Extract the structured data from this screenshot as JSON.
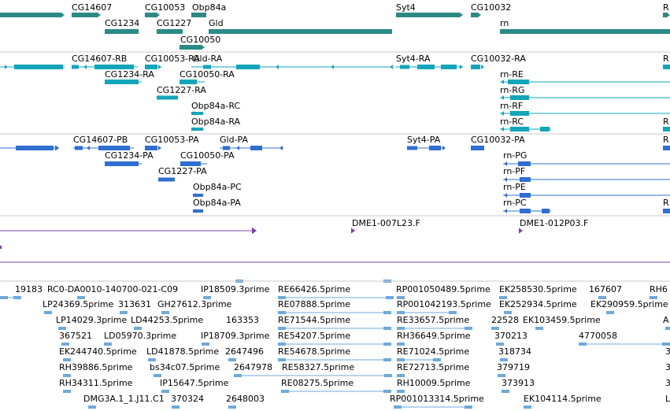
{
  "colors": {
    "gene": "#2b8a86",
    "transcript": "#12a5b9",
    "protein": "#2f6fd1",
    "clone": "#7a40a8",
    "est": "#6fa8dc",
    "separator": "#c8c8c8"
  },
  "tracks": {
    "genes": [
      {
        "label": "CG14607"
      },
      {
        "label": "CG10053"
      },
      {
        "label": "Obp84a"
      },
      {
        "label": "Syt4"
      },
      {
        "label": "CG10032"
      },
      {
        "label": "R"
      },
      {
        "label": "CG1234"
      },
      {
        "label": "CG1227"
      },
      {
        "label": "Gld"
      },
      {
        "label": "rn"
      },
      {
        "label": "CG10050"
      }
    ],
    "transcripts": [
      {
        "label": "CG14607-RB"
      },
      {
        "label": "CG10053-RA"
      },
      {
        "label": "Gld-RA"
      },
      {
        "label": "Syt4-RA"
      },
      {
        "label": "CG10032-RA"
      },
      {
        "label": "R"
      },
      {
        "label": "CG1234-RA"
      },
      {
        "label": "CG10050-RA"
      },
      {
        "label": "rn-RE"
      },
      {
        "label": "CG1227-RA"
      },
      {
        "label": "rn-RG"
      },
      {
        "label": "Obp84a-RC"
      },
      {
        "label": "rn-RF"
      },
      {
        "label": "Obp84a-RA"
      },
      {
        "label": "rn-RC"
      },
      {
        "label": "R"
      }
    ],
    "proteins": [
      {
        "label": "CG14607-PB"
      },
      {
        "label": "CG10053-PA"
      },
      {
        "label": "Gld-PA"
      },
      {
        "label": "Syt4-PA"
      },
      {
        "label": "CG10032-PA"
      },
      {
        "label": "R"
      },
      {
        "label": "CG1234-PA"
      },
      {
        "label": "CG10050-PA"
      },
      {
        "label": "rn-PG"
      },
      {
        "label": "CG1227-PA"
      },
      {
        "label": "rn-PF"
      },
      {
        "label": "Obp84a-PC"
      },
      {
        "label": "rn-PE"
      },
      {
        "label": "Obp84a-PA"
      },
      {
        "label": "rn-PC"
      },
      {
        "label": "R"
      }
    ],
    "clones": [
      {
        "label": "DME1-007L23.F"
      },
      {
        "label": "DME1-012P03.F"
      }
    ],
    "ests": [
      {
        "label": "19183"
      },
      {
        "label": "RC0-DA0010-140700-021-C09"
      },
      {
        "label": "IP18509.3prime"
      },
      {
        "label": "RE66426.5prime"
      },
      {
        "label": "RP001050489.5prime"
      },
      {
        "label": "EK258530.5prime"
      },
      {
        "label": "167607"
      },
      {
        "label": "RH6"
      },
      {
        "label": "LP24369.5prime"
      },
      {
        "label": "313631"
      },
      {
        "label": "GH27612.3prime"
      },
      {
        "label": "RE07888.5prime"
      },
      {
        "label": "RP001042193.5prime"
      },
      {
        "label": "EK252934.5prime"
      },
      {
        "label": "EK290959.5prime"
      },
      {
        "label": "LP14029.3prime"
      },
      {
        "label": "LD44253.5prime"
      },
      {
        "label": "163353"
      },
      {
        "label": "RE71544.5prime"
      },
      {
        "label": "RE33657.5prime"
      },
      {
        "label": "22528"
      },
      {
        "label": "EK103459.5prime"
      },
      {
        "label": "A"
      },
      {
        "label": "367521"
      },
      {
        "label": "LD05970.3prime"
      },
      {
        "label": "IP18709.3prime"
      },
      {
        "label": "RE54207.5prime"
      },
      {
        "label": "RH36649.5prime"
      },
      {
        "label": "370213"
      },
      {
        "label": "4770058"
      },
      {
        "label": "EK244740.5prime"
      },
      {
        "label": "LD41878.5prime"
      },
      {
        "label": "2647496"
      },
      {
        "label": "RE54678.5prime"
      },
      {
        "label": "RE71024.5prime"
      },
      {
        "label": "318734"
      },
      {
        "label": "3"
      },
      {
        "label": "RH39886.5prime"
      },
      {
        "label": "bs34c07.5prime"
      },
      {
        "label": "2647978"
      },
      {
        "label": "RE58327.5prime"
      },
      {
        "label": "RE72713.5prime"
      },
      {
        "label": "379719"
      },
      {
        "label": "3"
      },
      {
        "label": "RH34311.5prime"
      },
      {
        "label": "IP15647.5prime"
      },
      {
        "label": "RE08275.5prime"
      },
      {
        "label": "RH10009.5prime"
      },
      {
        "label": "373913"
      },
      {
        "label": "3"
      },
      {
        "label": "DMG3A.1_1.J11.C1"
      },
      {
        "label": "370324"
      },
      {
        "label": "2648003"
      },
      {
        "label": "RP001013314.5prime"
      },
      {
        "label": "EK104114.5prime"
      },
      {
        "label": "L"
      }
    ]
  }
}
